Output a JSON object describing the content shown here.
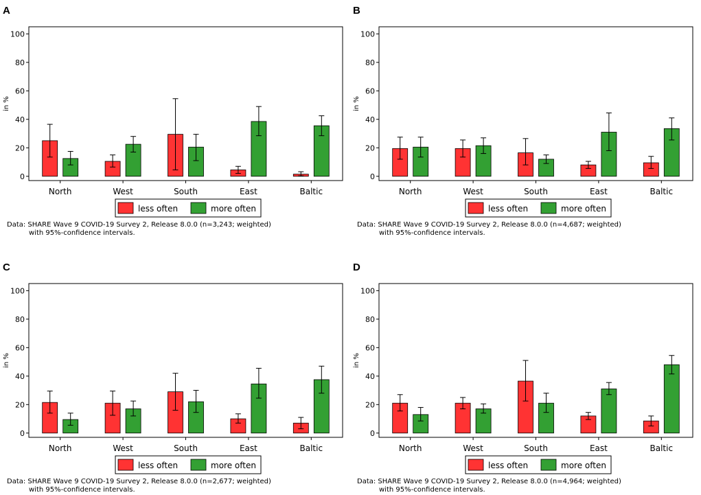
{
  "colors": {
    "less_often": "#ff3333",
    "more_often": "#33a033",
    "axis": "#000000",
    "bar_outline": "#000000"
  },
  "chart_data": [
    {
      "panel": "A",
      "type": "bar",
      "categories": [
        "North",
        "West",
        "South",
        "East",
        "Baltic"
      ],
      "series": [
        {
          "name": "less often",
          "values": [
            25,
            10.5,
            29.5,
            4.5,
            1.5
          ],
          "ci_low": [
            13.5,
            6.5,
            4.5,
            2,
            0.3
          ],
          "ci_high": [
            36.5,
            15,
            54.5,
            7,
            3.2
          ]
        },
        {
          "name": "more often",
          "values": [
            12.5,
            22.5,
            20.5,
            38.5,
            35.5
          ],
          "ci_low": [
            8,
            17,
            11,
            28.5,
            28.5
          ],
          "ci_high": [
            17.5,
            28,
            29.5,
            49,
            42.5
          ]
        }
      ],
      "ylabel": "in %",
      "yticks": [
        0,
        20,
        40,
        60,
        80,
        100
      ],
      "ylim": [
        -3,
        105
      ],
      "legend": [
        "less often",
        "more often"
      ],
      "note_line1": "Data: SHARE Wave 9 COVID-19 Survey 2, Release 8.0.0 (n=3,243; weighted)",
      "note_line2": "with 95%-confidence intervals."
    },
    {
      "panel": "B",
      "type": "bar",
      "categories": [
        "North",
        "West",
        "South",
        "East",
        "Baltic"
      ],
      "series": [
        {
          "name": "less often",
          "values": [
            19.5,
            19.5,
            16.5,
            8,
            9.5
          ],
          "ci_low": [
            12,
            13.5,
            8,
            5.5,
            5.5
          ],
          "ci_high": [
            27.5,
            25.5,
            26.5,
            10.5,
            14
          ]
        },
        {
          "name": "more often",
          "values": [
            20.5,
            21.5,
            12,
            31,
            33.5
          ],
          "ci_low": [
            13.5,
            16,
            9,
            18,
            25.5
          ],
          "ci_high": [
            27.5,
            27,
            15,
            44.5,
            41
          ]
        }
      ],
      "ylabel": "in %",
      "yticks": [
        0,
        20,
        40,
        60,
        80,
        100
      ],
      "ylim": [
        -3,
        105
      ],
      "legend": [
        "less often",
        "more often"
      ],
      "note_line1": "Data: SHARE Wave 9 COVID-19 Survey 2, Release 8.0.0 (n=4,687; weighted)",
      "note_line2": "with 95%-confidence intervals."
    },
    {
      "panel": "C",
      "type": "bar",
      "categories": [
        "North",
        "West",
        "South",
        "East",
        "Baltic"
      ],
      "series": [
        {
          "name": "less often",
          "values": [
            21.5,
            21,
            29,
            10,
            7
          ],
          "ci_low": [
            14,
            12.5,
            16,
            7,
            3
          ],
          "ci_high": [
            29.5,
            29.5,
            42,
            13.5,
            11
          ]
        },
        {
          "name": "more often",
          "values": [
            9.5,
            17,
            22,
            34.5,
            37.5
          ],
          "ci_low": [
            5.5,
            12,
            14.5,
            24.5,
            28
          ],
          "ci_high": [
            14,
            22.5,
            30,
            45.5,
            47
          ]
        }
      ],
      "ylabel": "in %",
      "yticks": [
        0,
        20,
        40,
        60,
        80,
        100
      ],
      "ylim": [
        -3,
        105
      ],
      "legend": [
        "less often",
        "more often"
      ],
      "note_line1": "Data: SHARE Wave 9 COVID-19 Survey 2, Release 8.0.0 (n=2,677; weighted)",
      "note_line2": "with 95%-confidence intervals."
    },
    {
      "panel": "D",
      "type": "bar",
      "categories": [
        "North",
        "West",
        "South",
        "East",
        "Baltic"
      ],
      "series": [
        {
          "name": "less often",
          "values": [
            21,
            21,
            36.5,
            12,
            8.5
          ],
          "ci_low": [
            15.5,
            17,
            22.5,
            9.5,
            5
          ],
          "ci_high": [
            27,
            25,
            51,
            14.5,
            12
          ]
        },
        {
          "name": "more often",
          "values": [
            13,
            17,
            21,
            31,
            48
          ],
          "ci_low": [
            8.5,
            14,
            14.5,
            27,
            41.5
          ],
          "ci_high": [
            18,
            20.5,
            28,
            35.5,
            54.5
          ]
        }
      ],
      "ylabel": "in %",
      "yticks": [
        0,
        20,
        40,
        60,
        80,
        100
      ],
      "ylim": [
        -3,
        105
      ],
      "legend": [
        "less often",
        "more often"
      ],
      "note_line1": "Data: SHARE Wave 9 COVID-19 Survey 2, Release 8.0.0 (n=4,964; weighted)",
      "note_line2": "with 95%-confidence intervals."
    }
  ]
}
